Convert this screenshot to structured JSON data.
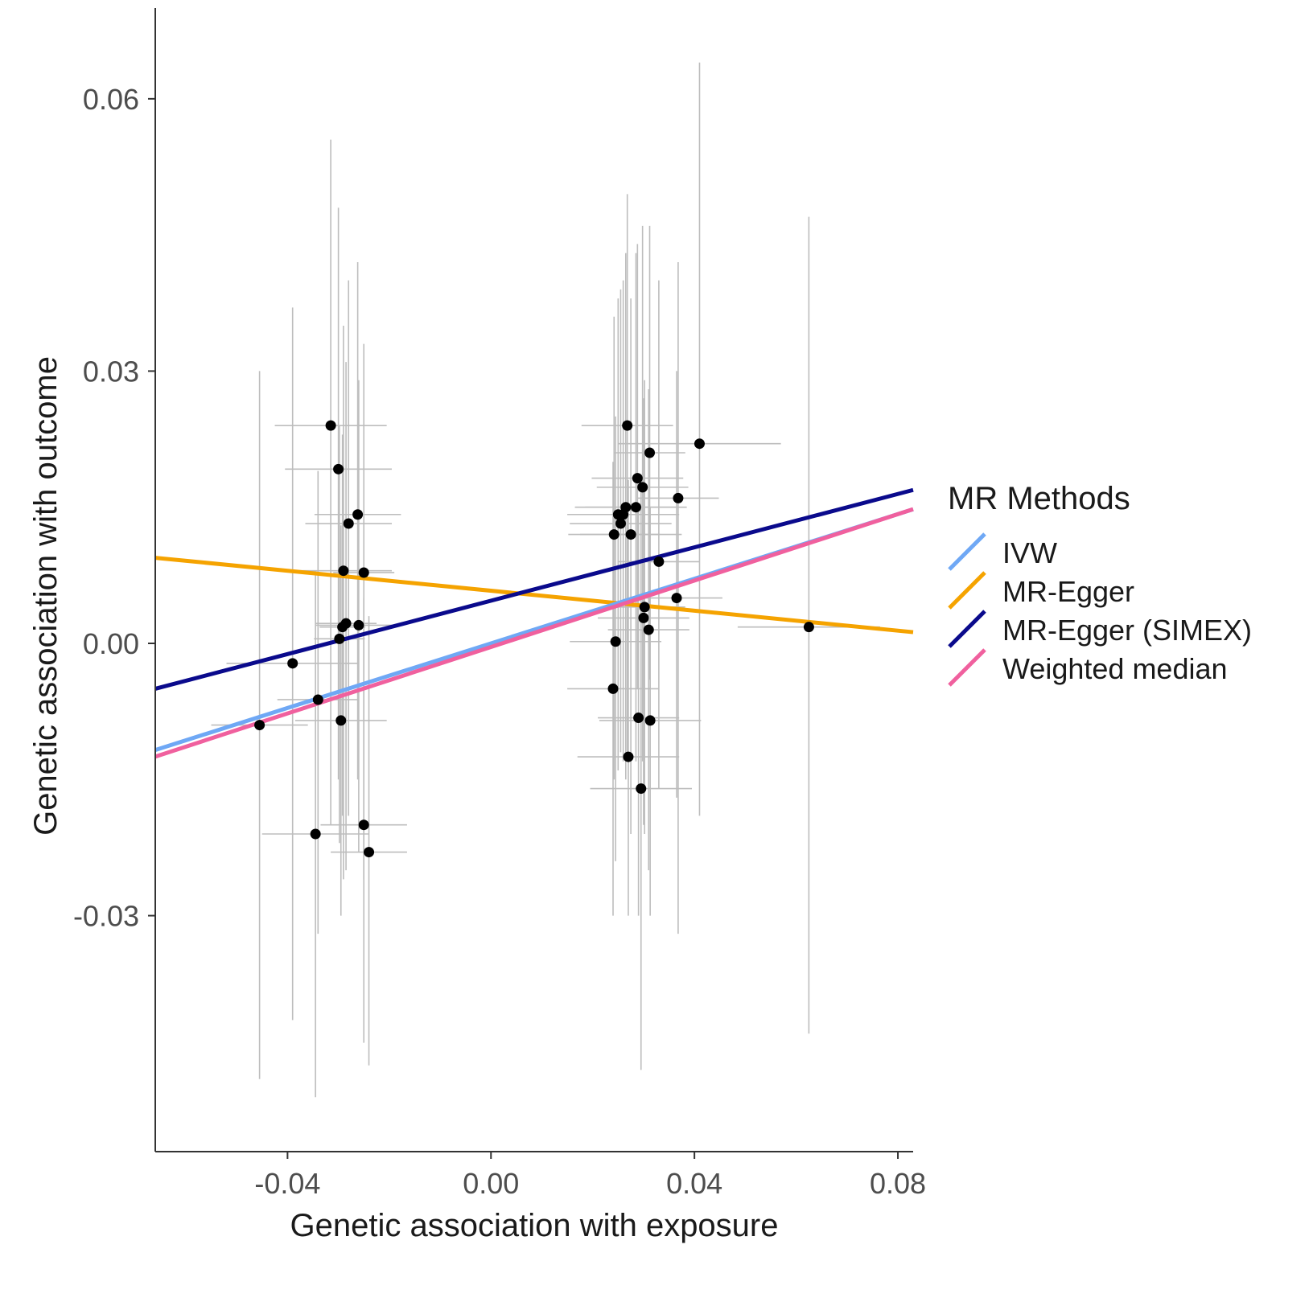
{
  "chart_data": {
    "type": "scatter",
    "xlabel": "Genetic association with exposure",
    "ylabel": "Genetic association with outcome",
    "xlim": [
      -0.066,
      0.083
    ],
    "ylim": [
      -0.056,
      0.07
    ],
    "x_ticks": [
      {
        "value": -0.04,
        "label": "-0.04"
      },
      {
        "value": 0.0,
        "label": "0.00"
      },
      {
        "value": 0.04,
        "label": "0.04"
      },
      {
        "value": 0.08,
        "label": "0.08"
      }
    ],
    "y_ticks": [
      {
        "value": 0.06,
        "label": "0.06"
      },
      {
        "value": 0.03,
        "label": "0.03"
      },
      {
        "value": 0.0,
        "label": "0.00"
      },
      {
        "value": -0.03,
        "label": "-0.03"
      }
    ],
    "grid": false,
    "legend": {
      "title": "MR Methods",
      "position": "right",
      "entries": [
        {
          "label": "IVW",
          "color": "#6fa8f5"
        },
        {
          "label": "MR-Egger",
          "color": "#f5a300"
        },
        {
          "label": "MR-Egger (SIMEX)",
          "color": "#0a0a8c"
        },
        {
          "label": "Weighted median",
          "color": "#f0609e"
        }
      ]
    },
    "lines": [
      {
        "name": "IVW",
        "color": "#6fa8f5",
        "intercept": 0.0,
        "slope": 0.178
      },
      {
        "name": "MR-Egger",
        "color": "#f5a300",
        "intercept": 0.0058,
        "slope": -0.055
      },
      {
        "name": "MR-Egger (SIMEX)",
        "color": "#0a0a8c",
        "intercept": 0.0047,
        "slope": 0.147
      },
      {
        "name": "Weighted median",
        "color": "#f0609e",
        "intercept": -0.0004,
        "slope": 0.183
      }
    ],
    "points": [
      {
        "x": -0.0455,
        "y": -0.009,
        "xerr": 0.0095,
        "ylo": -0.048,
        "yhi": 0.03
      },
      {
        "x": -0.039,
        "y": -0.0022,
        "xerr": 0.013,
        "ylo": -0.0415,
        "yhi": 0.037
      },
      {
        "x": -0.0345,
        "y": -0.021,
        "xerr": 0.0105,
        "ylo": -0.05,
        "yhi": 0.008
      },
      {
        "x": -0.034,
        "y": -0.0062,
        "xerr": 0.008,
        "ylo": -0.032,
        "yhi": 0.019
      },
      {
        "x": -0.0315,
        "y": 0.024,
        "xerr": 0.011,
        "ylo": -0.02,
        "yhi": 0.0555
      },
      {
        "x": -0.03,
        "y": 0.0192,
        "xerr": 0.0105,
        "ylo": -0.015,
        "yhi": 0.048
      },
      {
        "x": -0.0298,
        "y": 0.0005,
        "xerr": 0.005,
        "ylo": -0.022,
        "yhi": 0.024
      },
      {
        "x": -0.0295,
        "y": -0.0085,
        "xerr": 0.009,
        "ylo": -0.03,
        "yhi": 0.013
      },
      {
        "x": -0.0292,
        "y": 0.0018,
        "xerr": 0.0045,
        "ylo": -0.019,
        "yhi": 0.023
      },
      {
        "x": -0.029,
        "y": 0.008,
        "xerr": 0.0095,
        "ylo": -0.026,
        "yhi": 0.035
      },
      {
        "x": -0.0285,
        "y": 0.0022,
        "xerr": 0.006,
        "ylo": -0.025,
        "yhi": 0.031
      },
      {
        "x": -0.028,
        "y": 0.0132,
        "xerr": 0.0085,
        "ylo": -0.019,
        "yhi": 0.04
      },
      {
        "x": -0.0262,
        "y": 0.0142,
        "xerr": 0.0085,
        "ylo": -0.015,
        "yhi": 0.042
      },
      {
        "x": -0.026,
        "y": 0.002,
        "xerr": 0.0085,
        "ylo": -0.023,
        "yhi": 0.029
      },
      {
        "x": -0.025,
        "y": 0.0078,
        "xerr": 0.006,
        "ylo": -0.026,
        "yhi": 0.033
      },
      {
        "x": -0.025,
        "y": -0.02,
        "xerr": 0.0085,
        "ylo": -0.044,
        "yhi": 0.005
      },
      {
        "x": -0.024,
        "y": -0.023,
        "xerr": 0.0075,
        "ylo": -0.0465,
        "yhi": 0.003
      },
      {
        "x": 0.024,
        "y": -0.005,
        "xerr": 0.009,
        "ylo": -0.03,
        "yhi": 0.02
      },
      {
        "x": 0.0242,
        "y": 0.012,
        "xerr": 0.009,
        "ylo": -0.015,
        "yhi": 0.036
      },
      {
        "x": 0.0245,
        "y": 0.0002,
        "xerr": 0.009,
        "ylo": -0.024,
        "yhi": 0.025
      },
      {
        "x": 0.025,
        "y": 0.0142,
        "xerr": 0.009,
        "ylo": -0.014,
        "yhi": 0.038
      },
      {
        "x": 0.0255,
        "y": 0.0132,
        "xerr": 0.01,
        "ylo": -0.012,
        "yhi": 0.039
      },
      {
        "x": 0.026,
        "y": 0.0142,
        "xerr": 0.011,
        "ylo": -0.013,
        "yhi": 0.04
      },
      {
        "x": 0.0265,
        "y": 0.015,
        "xerr": 0.01,
        "ylo": -0.015,
        "yhi": 0.043
      },
      {
        "x": 0.0268,
        "y": 0.024,
        "xerr": 0.009,
        "ylo": -0.012,
        "yhi": 0.0495
      },
      {
        "x": 0.027,
        "y": -0.0125,
        "xerr": 0.01,
        "ylo": -0.03,
        "yhi": 0.018
      },
      {
        "x": 0.0275,
        "y": 0.012,
        "xerr": 0.01,
        "ylo": -0.021,
        "yhi": 0.038
      },
      {
        "x": 0.0285,
        "y": 0.015,
        "xerr": 0.01,
        "ylo": -0.013,
        "yhi": 0.043
      },
      {
        "x": 0.0288,
        "y": 0.0182,
        "xerr": 0.009,
        "ylo": -0.005,
        "yhi": 0.044
      },
      {
        "x": 0.029,
        "y": -0.0082,
        "xerr": 0.008,
        "ylo": -0.03,
        "yhi": 0.015
      },
      {
        "x": 0.0295,
        "y": -0.016,
        "xerr": 0.01,
        "ylo": -0.047,
        "yhi": 0.018
      },
      {
        "x": 0.0298,
        "y": 0.0172,
        "xerr": 0.009,
        "ylo": -0.013,
        "yhi": 0.046
      },
      {
        "x": 0.03,
        "y": 0.0028,
        "xerr": 0.009,
        "ylo": -0.02,
        "yhi": 0.027
      },
      {
        "x": 0.0302,
        "y": 0.004,
        "xerr": 0.008,
        "ylo": -0.021,
        "yhi": 0.029
      },
      {
        "x": 0.031,
        "y": 0.0015,
        "xerr": 0.008,
        "ylo": -0.025,
        "yhi": 0.028
      },
      {
        "x": 0.0312,
        "y": 0.021,
        "xerr": 0.007,
        "ylo": -0.004,
        "yhi": 0.046
      },
      {
        "x": 0.0313,
        "y": -0.0085,
        "xerr": 0.01,
        "ylo": -0.03,
        "yhi": 0.015
      },
      {
        "x": 0.033,
        "y": 0.009,
        "xerr": 0.008,
        "ylo": -0.016,
        "yhi": 0.04
      },
      {
        "x": 0.0365,
        "y": 0.005,
        "xerr": 0.009,
        "ylo": -0.017,
        "yhi": 0.03
      },
      {
        "x": 0.0368,
        "y": 0.016,
        "xerr": 0.008,
        "ylo": -0.032,
        "yhi": 0.042
      },
      {
        "x": 0.041,
        "y": 0.022,
        "xerr": 0.016,
        "ylo": -0.019,
        "yhi": 0.064
      },
      {
        "x": 0.0625,
        "y": 0.0018,
        "xerr": 0.014,
        "ylo": -0.043,
        "yhi": 0.047
      }
    ]
  }
}
